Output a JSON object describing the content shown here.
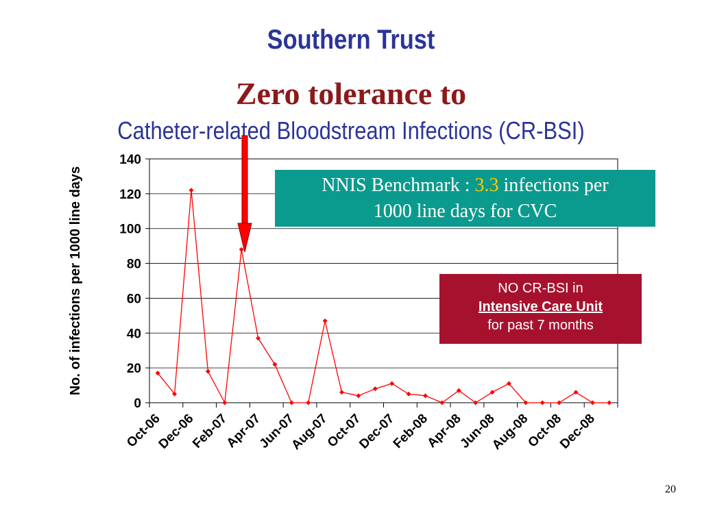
{
  "slide": {
    "title_line1": "Southern Trust",
    "title_line2": "Zero tolerance to",
    "title_line3": "Catheter-related Bloodstream Infections (CR-BSI)",
    "page_number": "20"
  },
  "nnis_box": {
    "prefix": "NNIS Benchmark : ",
    "value": "3.3",
    "suffix_line1": " infections per",
    "line2": "1000 line days for CVC"
  },
  "icu_box": {
    "line1": "NO CR-BSI in",
    "line2": "Intensive Care Unit",
    "line3": "for past  7 months"
  },
  "colors": {
    "title_blue": "#2b3499",
    "title_red": "#8b1a1a",
    "series_red": "#ff0000",
    "nnis_teal": "#0b9a8e",
    "icu_red": "#a6122e"
  },
  "chart_data": {
    "type": "line",
    "ylabel": "No. of infections per 1000 line days",
    "xlabel": "",
    "ylim": [
      0,
      140
    ],
    "yticks": [
      0,
      20,
      40,
      60,
      80,
      100,
      120,
      140
    ],
    "x": [
      "Oct-06",
      "Nov-06",
      "Dec-06",
      "Jan-07",
      "Feb-07",
      "Mar-07",
      "Apr-07",
      "May-07",
      "Jun-07",
      "Jul-07",
      "Aug-07",
      "Sep-07",
      "Oct-07",
      "Nov-07",
      "Dec-07",
      "Jan-08",
      "Feb-08",
      "Mar-08",
      "Apr-08",
      "May-08",
      "Jun-08",
      "Jul-08",
      "Aug-08",
      "Sep-08",
      "Oct-08",
      "Nov-08",
      "Dec-08",
      "Jan-09"
    ],
    "x_tick_labels": [
      "Oct-06",
      "Dec-06",
      "Feb-07",
      "Apr-07",
      "Jun-07",
      "Aug-07",
      "Oct-07",
      "Dec-07",
      "Feb-08",
      "Apr-08",
      "Jun-08",
      "Aug-08",
      "Oct-08",
      "Dec-08"
    ],
    "series": [
      {
        "values": [
          17,
          5,
          122,
          18,
          0,
          88,
          37,
          22,
          0,
          0,
          47,
          6,
          4,
          8,
          11,
          5,
          4,
          0,
          7,
          0,
          6,
          11,
          0,
          0,
          0,
          6,
          0,
          0
        ]
      }
    ],
    "grid": true,
    "legend": "none"
  }
}
